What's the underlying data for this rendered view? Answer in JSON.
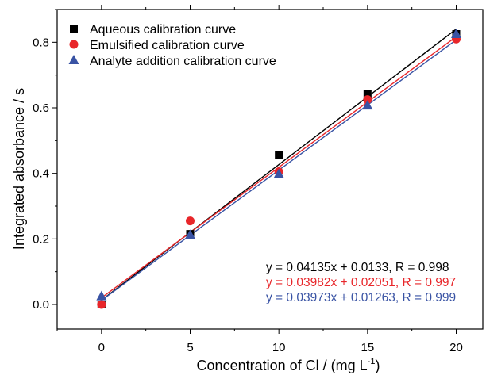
{
  "chart_data": {
    "type": "scatter",
    "xlabel_main": "Concentration of Cl / (mg L",
    "xlabel_sup": "-1",
    "xlabel_close": ")",
    "ylabel": "Integrated absorbance / s",
    "xlim": [
      -2.5,
      21.5
    ],
    "ylim": [
      -0.075,
      0.9
    ],
    "x_ticks": [
      0,
      5,
      10,
      15,
      20
    ],
    "x_tick_labels": [
      "0",
      "5",
      "10",
      "15",
      "20"
    ],
    "y_ticks": [
      0.0,
      0.2,
      0.4,
      0.6,
      0.8
    ],
    "y_tick_labels": [
      "0.0",
      "0.2",
      "0.4",
      "0.6",
      "0.8"
    ],
    "grid": false,
    "legend_position": "top-left",
    "series": [
      {
        "name": "Aqueous calibration curve",
        "marker": "square",
        "color": "#000000",
        "x": [
          0,
          5,
          10,
          15,
          20
        ],
        "y": [
          0.0,
          0.215,
          0.455,
          0.642,
          0.825
        ],
        "fit": {
          "slope": 0.04135,
          "intercept": 0.0133
        },
        "equation": "y = 0.04135x + 0.0133, R = 0.998"
      },
      {
        "name": "Emulsified calibration curve",
        "marker": "circle",
        "color": "#e8262a",
        "x": [
          0,
          5,
          10,
          15,
          20
        ],
        "y": [
          0.0,
          0.255,
          0.405,
          0.625,
          0.81
        ],
        "fit": {
          "slope": 0.03982,
          "intercept": 0.02051
        },
        "equation": "y = 0.03982x + 0.02051, R = 0.997"
      },
      {
        "name": "Analyte addition calibration curve",
        "marker": "triangle",
        "color": "#3953a4",
        "x": [
          0,
          5,
          10,
          15,
          20
        ],
        "y": [
          0.025,
          0.212,
          0.398,
          0.607,
          0.825
        ],
        "fit": {
          "slope": 0.03973,
          "intercept": 0.01263
        },
        "equation": "y = 0.03973x + 0.01263, R = 0.999"
      }
    ]
  }
}
